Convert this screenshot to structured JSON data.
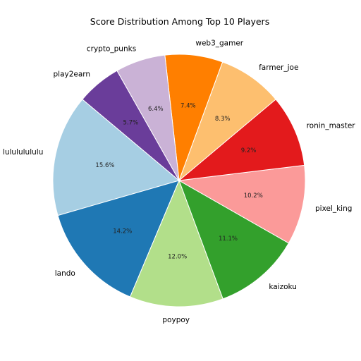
{
  "chart_data": {
    "type": "pie",
    "title": "Score Distribution Among Top 10 Players",
    "slices": [
      {
        "label": "lulululululu",
        "percent_label": "15.6%",
        "value": 15.6,
        "color": "#a6cee3"
      },
      {
        "label": "lando",
        "percent_label": "14.2%",
        "value": 14.2,
        "color": "#1f78b4"
      },
      {
        "label": "poypoy",
        "percent_label": "12.0%",
        "value": 12.0,
        "color": "#b2df8a"
      },
      {
        "label": "kaizoku",
        "percent_label": "11.1%",
        "value": 11.1,
        "color": "#33a02c"
      },
      {
        "label": "pixel_king",
        "percent_label": "10.2%",
        "value": 10.2,
        "color": "#fb9a99"
      },
      {
        "label": "ronin_master",
        "percent_label": "9.2%",
        "value": 9.2,
        "color": "#e31a1c"
      },
      {
        "label": "farmer_joe",
        "percent_label": "8.3%",
        "value": 8.3,
        "color": "#fdbf6f"
      },
      {
        "label": "web3_gamer",
        "percent_label": "7.4%",
        "value": 7.4,
        "color": "#ff7f00"
      },
      {
        "label": "crypto_punks",
        "percent_label": "6.4%",
        "value": 6.4,
        "color": "#cab2d6"
      },
      {
        "label": "play2earn",
        "percent_label": "5.7%",
        "value": 5.7,
        "color": "#6a3d9a"
      }
    ],
    "start_angle_deg": 140,
    "direction": "counterclockwise",
    "legend": "none"
  }
}
